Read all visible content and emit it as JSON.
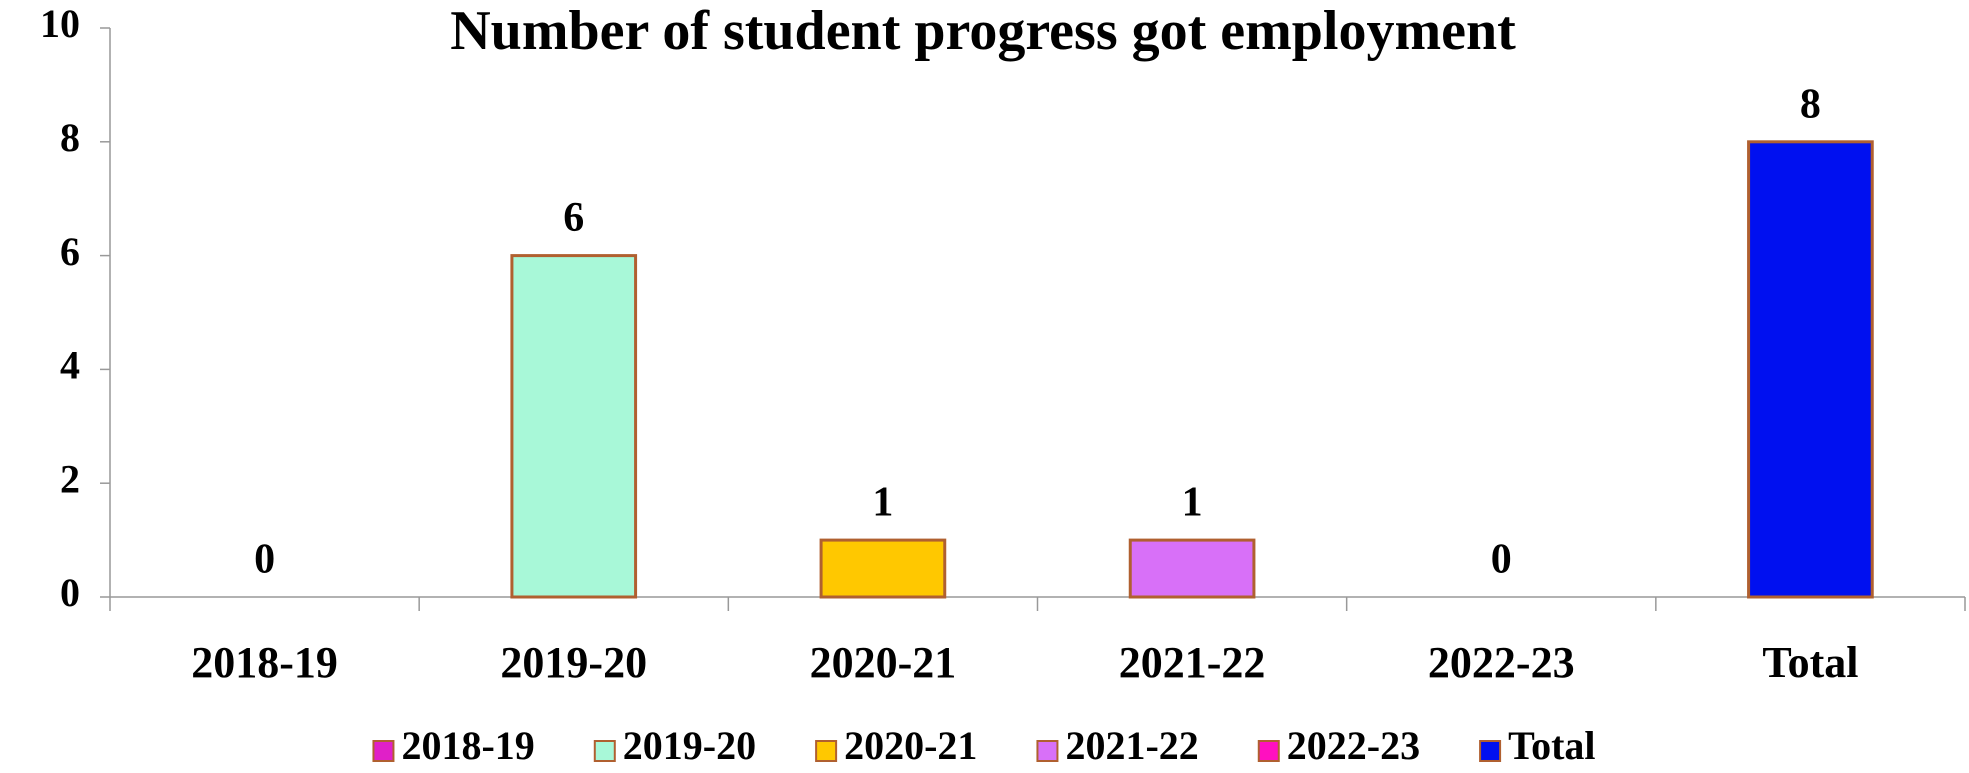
{
  "chart_data": {
    "type": "bar",
    "title": "Number of student progress got employment",
    "categories": [
      "2018-19",
      "2019-20",
      "2020-21",
      "2021-22",
      "2022-23",
      "Total"
    ],
    "values": [
      0,
      6,
      1,
      1,
      0,
      8
    ],
    "colors": [
      "#e020c8",
      "#a8f8d8",
      "#ffc800",
      "#d870f8",
      "#ff10c0",
      "#0010f0"
    ],
    "ylim": [
      0,
      10
    ],
    "yticks": [
      0,
      2,
      4,
      6,
      8,
      10
    ],
    "legend": "bottom"
  }
}
